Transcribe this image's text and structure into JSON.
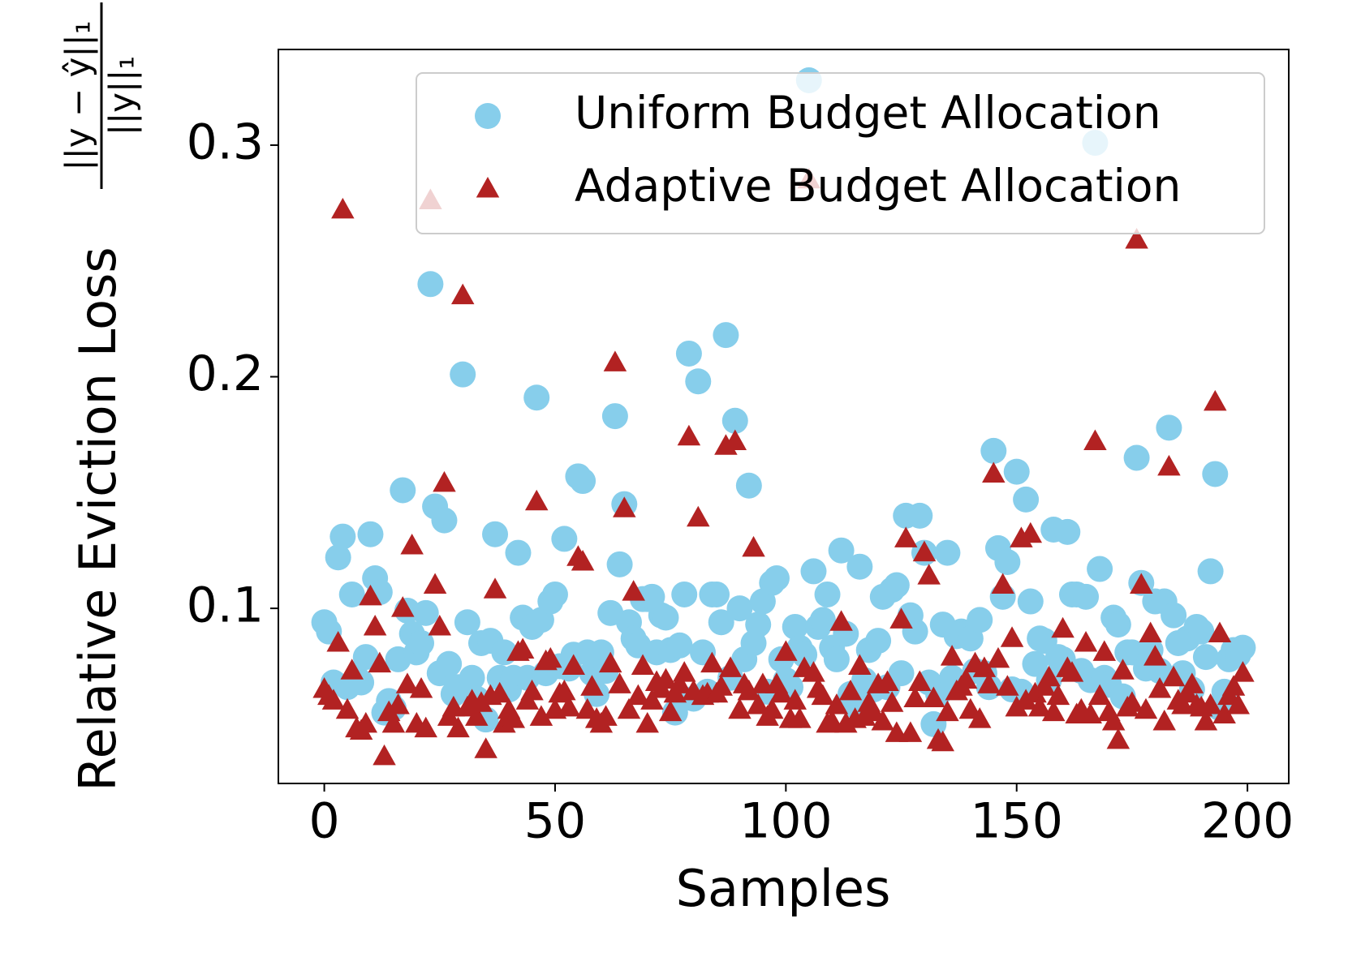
{
  "chart_data": {
    "type": "scatter",
    "xlabel": "Samples",
    "ylabel": "Relative Eviction Loss",
    "ylabel_fraction": {
      "numerator": "||y − ŷ||₁",
      "denominator": "||y||₁"
    },
    "xlim": [
      -9.95,
      208.95
    ],
    "ylim": [
      0.0244,
      0.3413
    ],
    "xticks": [
      0,
      50,
      100,
      150,
      200
    ],
    "yticks": [
      0.1,
      0.2,
      0.3
    ],
    "grid": false,
    "legend": "upper right",
    "series": [
      {
        "name": "Uniform Budget Allocation",
        "color": "#87ceeb",
        "marker": "circle",
        "values": [
          0.094,
          0.09,
          0.068,
          0.122,
          0.131,
          0.066,
          0.106,
          0.07,
          0.068,
          0.079,
          0.132,
          0.113,
          0.107,
          0.055,
          0.06,
          0.057,
          0.078,
          0.151,
          0.099,
          0.089,
          0.081,
          0.085,
          0.098,
          0.24,
          0.144,
          0.072,
          0.138,
          0.076,
          0.063,
          0.066,
          0.201,
          0.094,
          0.07,
          0.061,
          0.085,
          0.052,
          0.086,
          0.132,
          0.07,
          0.081,
          0.065,
          0.07,
          0.124,
          0.096,
          0.07,
          0.092,
          0.191,
          0.095,
          0.072,
          0.103,
          0.106,
          0.075,
          0.13,
          0.074,
          0.08,
          0.157,
          0.155,
          0.081,
          0.072,
          0.063,
          0.081,
          0.073,
          0.098,
          0.183,
          0.119,
          0.145,
          0.094,
          0.087,
          0.084,
          0.104,
          0.104,
          0.105,
          0.081,
          0.097,
          0.096,
          0.082,
          0.055,
          0.084,
          0.106,
          0.21,
          0.061,
          0.198,
          0.081,
          0.064,
          0.106,
          0.106,
          0.094,
          0.218,
          0.07,
          0.181,
          0.1,
          0.078,
          0.153,
          0.085,
          0.093,
          0.103,
          0.064,
          0.111,
          0.113,
          0.078,
          0.069,
          0.066,
          0.092,
          0.083,
          0.08,
          0.328,
          0.116,
          0.092,
          0.095,
          0.106,
          0.083,
          0.078,
          0.125,
          0.089,
          0.063,
          0.058,
          0.118,
          0.069,
          0.082,
          0.065,
          0.086,
          0.105,
          0.066,
          0.108,
          0.11,
          0.072,
          0.14,
          0.097,
          0.09,
          0.14,
          0.124,
          0.068,
          0.05,
          0.063,
          0.093,
          0.124,
          0.07,
          0.088,
          0.09,
          0.089,
          0.087,
          0.073,
          0.095,
          0.072,
          0.066,
          0.168,
          0.126,
          0.105,
          0.12,
          0.065,
          0.159,
          0.064,
          0.147,
          0.103,
          0.076,
          0.087,
          0.086,
          0.069,
          0.134,
          0.079,
          0.078,
          0.133,
          0.106,
          0.106,
          0.073,
          0.105,
          0.069,
          0.301,
          0.117,
          0.07,
          0.067,
          0.096,
          0.093,
          0.062,
          0.081,
          0.081,
          0.165,
          0.111,
          0.074,
          0.082,
          0.103,
          0.073,
          0.103,
          0.178,
          0.097,
          0.085,
          0.072,
          0.087,
          0.065,
          0.092,
          0.09,
          0.079,
          0.116,
          0.158,
          0.057,
          0.064,
          0.078,
          0.082,
          0.08,
          0.083
        ]
      },
      {
        "name": "Adaptive Budget Allocation",
        "color": "#b22222",
        "marker": "triangle",
        "values": [
          0.065,
          0.062,
          0.06,
          0.085,
          0.272,
          0.056,
          0.073,
          0.048,
          0.047,
          0.05,
          0.105,
          0.092,
          0.076,
          0.036,
          0.055,
          0.05,
          0.058,
          0.1,
          0.067,
          0.127,
          0.05,
          0.065,
          0.048,
          0.276,
          0.11,
          0.092,
          0.154,
          0.053,
          0.057,
          0.048,
          0.235,
          0.057,
          0.06,
          0.053,
          0.059,
          0.039,
          0.062,
          0.108,
          0.063,
          0.05,
          0.056,
          0.052,
          0.081,
          0.082,
          0.06,
          0.064,
          0.146,
          0.053,
          0.077,
          0.078,
          0.056,
          0.063,
          0.064,
          0.057,
          0.075,
          0.122,
          0.12,
          0.056,
          0.066,
          0.052,
          0.05,
          0.053,
          0.076,
          0.206,
          0.067,
          0.143,
          0.056,
          0.107,
          0.062,
          0.075,
          0.05,
          0.06,
          0.068,
          0.065,
          0.069,
          0.055,
          0.063,
          0.067,
          0.072,
          0.174,
          0.064,
          0.139,
          0.062,
          0.063,
          0.076,
          0.063,
          0.066,
          0.17,
          0.074,
          0.172,
          0.056,
          0.067,
          0.064,
          0.126,
          0.058,
          0.067,
          0.053,
          0.056,
          0.067,
          0.063,
          0.081,
          0.052,
          0.06,
          0.052,
          0.074,
          0.285,
          0.072,
          0.065,
          0.062,
          0.05,
          0.051,
          0.058,
          0.094,
          0.05,
          0.064,
          0.052,
          0.075,
          0.053,
          0.059,
          0.055,
          0.067,
          0.051,
          0.068,
          0.059,
          0.046,
          0.095,
          0.13,
          0.046,
          0.061,
          0.068,
          0.124,
          0.114,
          0.061,
          0.043,
          0.042,
          0.055,
          0.079,
          0.064,
          0.066,
          0.069,
          0.056,
          0.076,
          0.052,
          0.074,
          0.067,
          0.158,
          0.078,
          0.11,
          0.066,
          0.087,
          0.057,
          0.13,
          0.06,
          0.132,
          0.063,
          0.057,
          0.066,
          0.07,
          0.055,
          0.062,
          0.091,
          0.074,
          0.072,
          0.054,
          0.056,
          0.085,
          0.054,
          0.172,
          0.062,
          0.081,
          0.055,
          0.051,
          0.043,
          0.073,
          0.057,
          0.059,
          0.259,
          0.11,
          0.056,
          0.089,
          0.079,
          0.065,
          0.051,
          0.161,
          0.07,
          0.06,
          0.058,
          0.063,
          0.067,
          0.058,
          0.057,
          0.051,
          0.058,
          0.189,
          0.089,
          0.054,
          0.062,
          0.066,
          0.058,
          0.072
        ]
      }
    ]
  }
}
